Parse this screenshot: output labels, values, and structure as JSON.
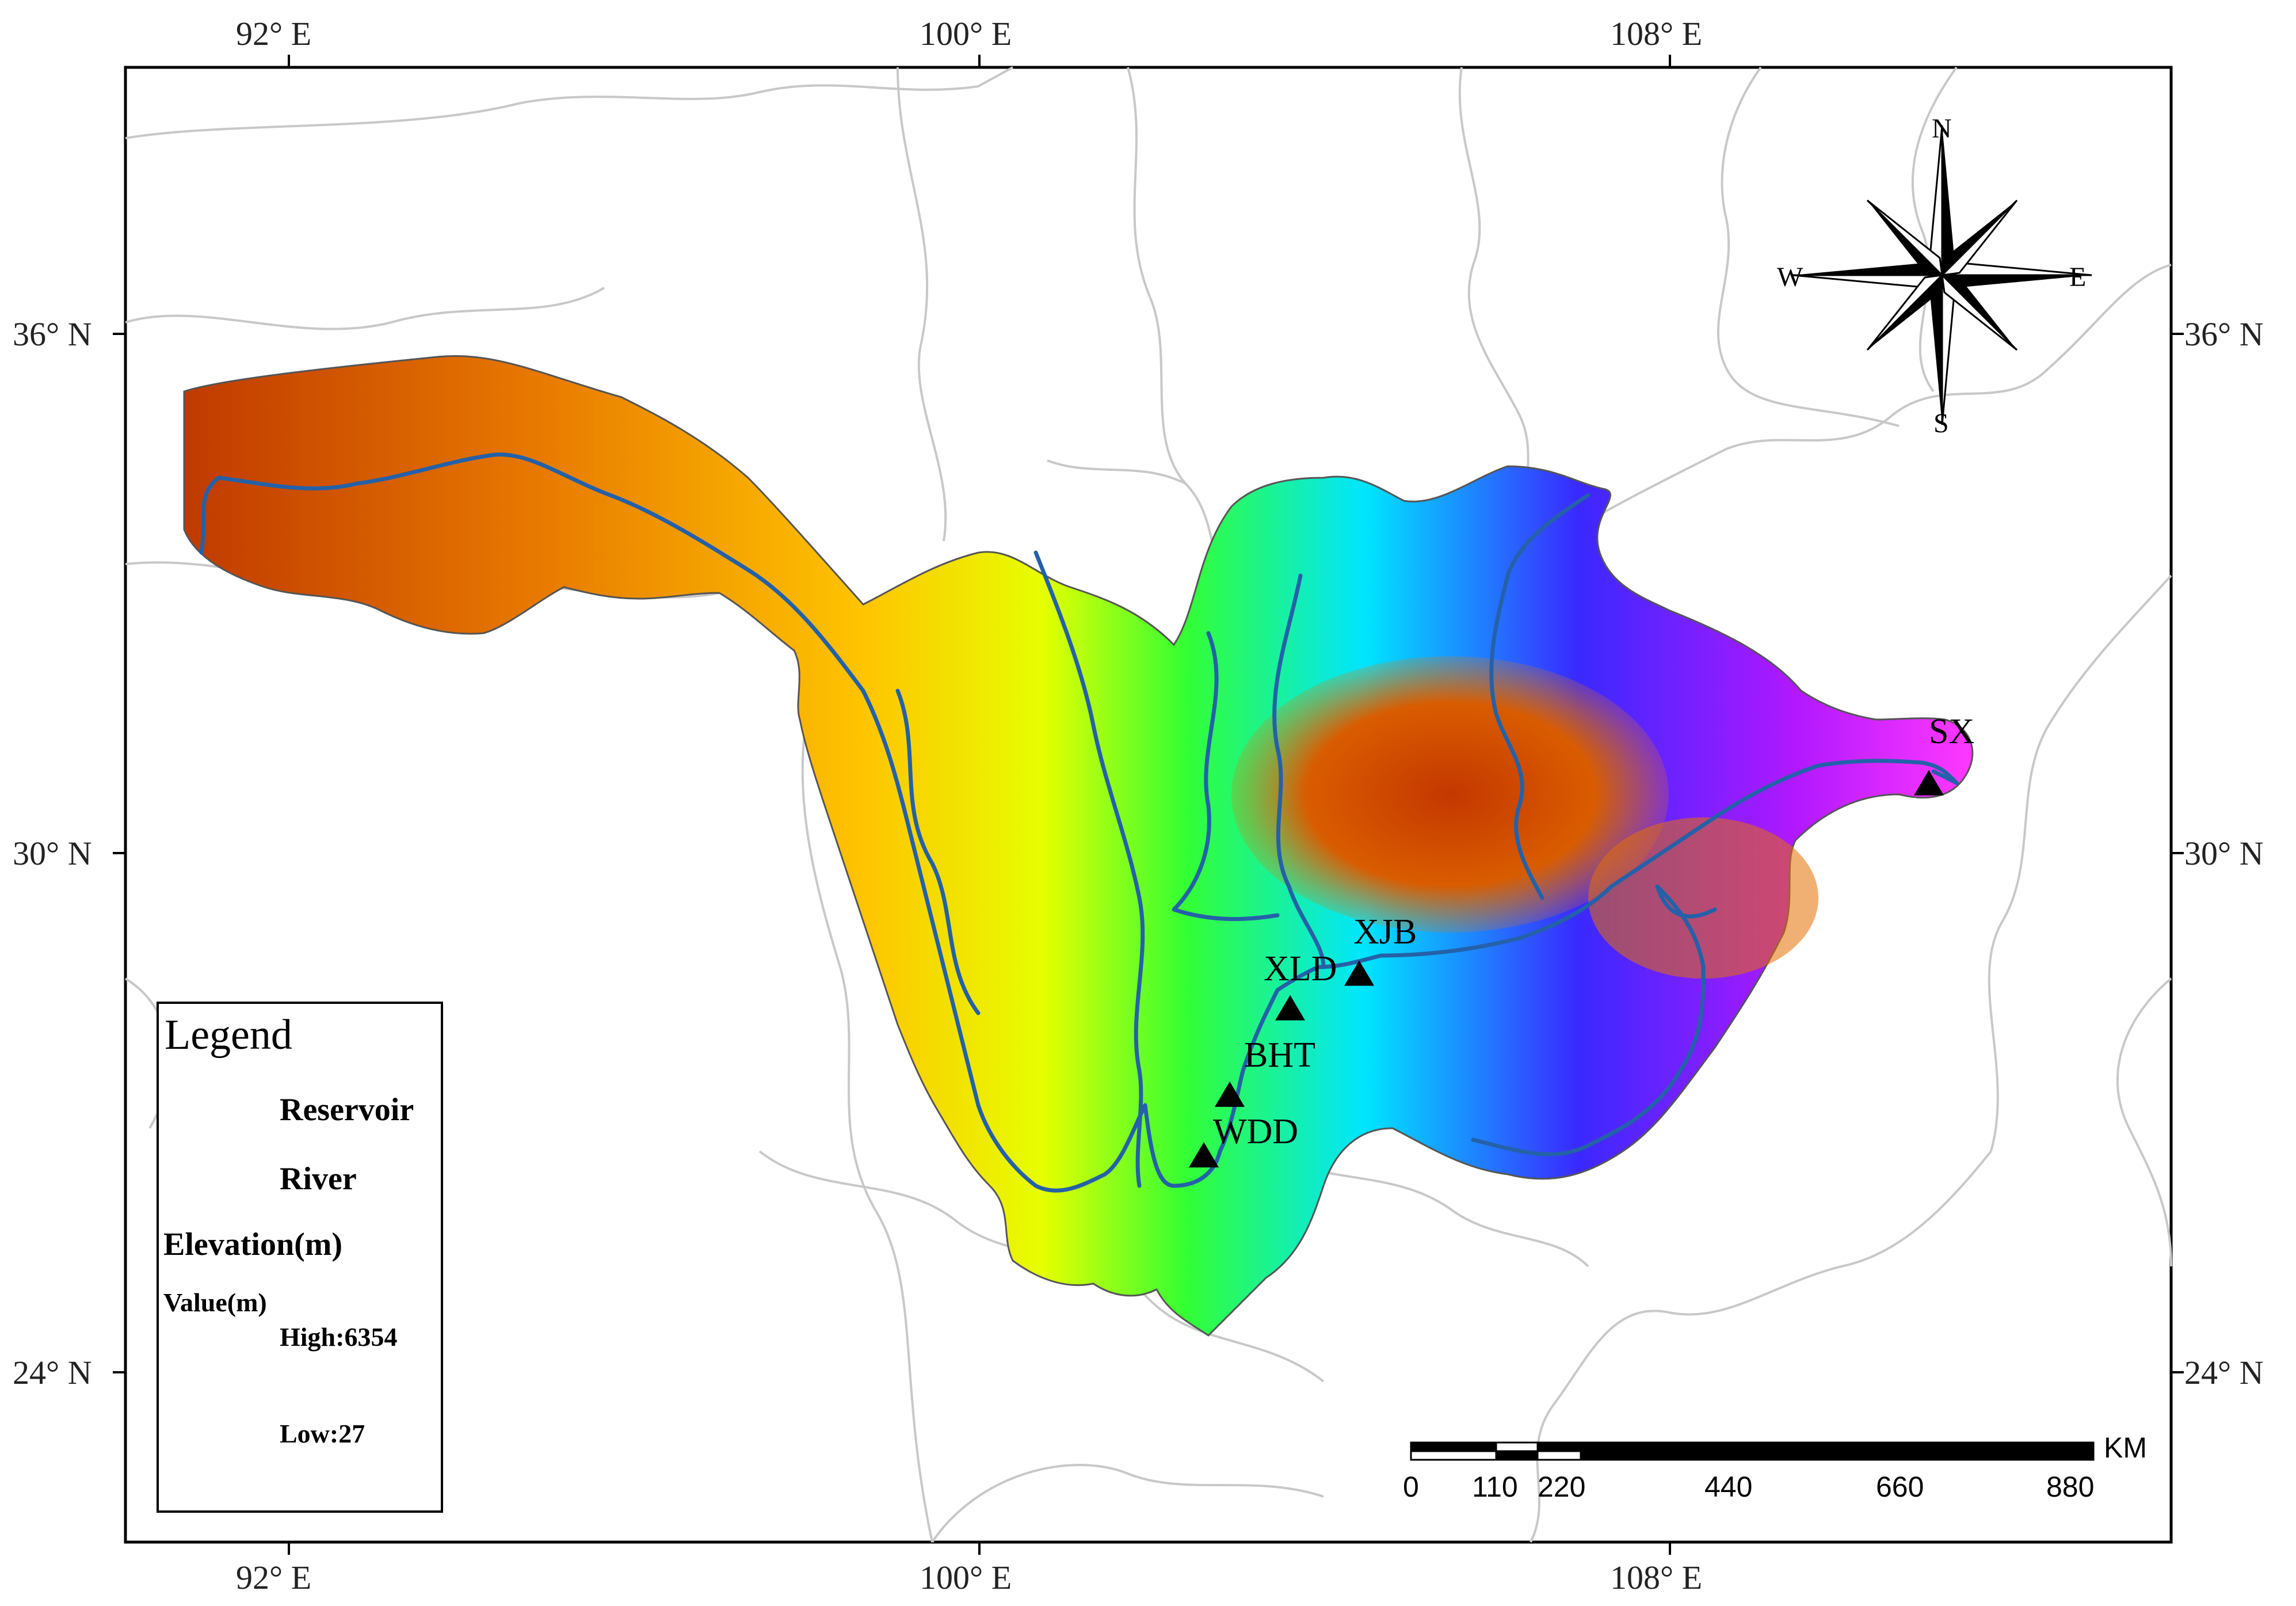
{
  "axes": {
    "top_longitudes": [
      "92° E",
      "100° E",
      "108° E"
    ],
    "bottom_longitudes": [
      "92° E",
      "100° E",
      "108° E"
    ],
    "left_latitudes": [
      "36° N",
      "30° N",
      "24° N"
    ],
    "right_latitudes": [
      "36° N",
      "30° N",
      "24° N"
    ]
  },
  "reservoirs": [
    {
      "name": "WDD",
      "lon": 102.6,
      "lat": 26.5
    },
    {
      "name": "BHT",
      "lon": 102.9,
      "lat": 27.2
    },
    {
      "name": "XLD",
      "lon": 103.6,
      "lat": 28.2
    },
    {
      "name": "XJB",
      "lon": 104.4,
      "lat": 28.6
    },
    {
      "name": "SX",
      "lon": 111.0,
      "lat": 30.8
    }
  ],
  "compass": {
    "n": "N",
    "s": "S",
    "e": "E",
    "w": "W"
  },
  "legend": {
    "title": "Legend",
    "reservoir_label": "Reservoir",
    "river_label": "River",
    "elevation_title": "Elevation(m)",
    "value_label": "Value(m)",
    "high_label": "High:6354",
    "low_label": "Low:27",
    "elevation_high": 6354,
    "elevation_low": 27
  },
  "scale_bar": {
    "unit": "KM",
    "labels": [
      "0",
      "110",
      "220",
      "440",
      "660",
      "880"
    ]
  },
  "colors": {
    "river": "#2461a8",
    "boundary": "#c8c8c8",
    "elevation_ramp": [
      "#b30000",
      "#e65c00",
      "#ffaa00",
      "#ffff00",
      "#00ff00",
      "#00ffff",
      "#0000ff",
      "#ff00ff",
      "#ffdfff"
    ]
  }
}
